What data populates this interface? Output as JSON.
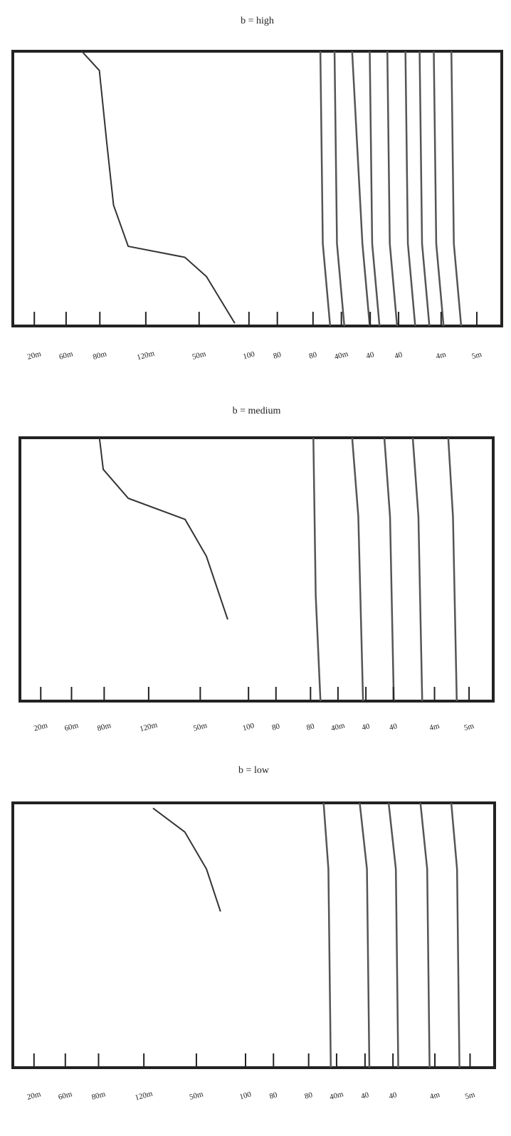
{
  "chart_data": [
    {
      "type": "line",
      "title": "b = high",
      "xlim": [
        0,
        100
      ],
      "ylim": [
        0,
        100
      ],
      "xticks": [
        {
          "value": 4.4,
          "label": "20m"
        },
        {
          "value": 10.9,
          "label": "60m"
        },
        {
          "value": 17.8,
          "label": "80m"
        },
        {
          "value": 27.2,
          "label": "120m"
        },
        {
          "value": 38.1,
          "label": "50m"
        },
        {
          "value": 48.3,
          "label": "100"
        },
        {
          "value": 54.1,
          "label": "80"
        },
        {
          "value": 61.4,
          "label": "80"
        },
        {
          "value": 67.2,
          "label": "40m"
        },
        {
          "value": 73.1,
          "label": "40"
        },
        {
          "value": 78.9,
          "label": "40"
        },
        {
          "value": 87.6,
          "label": "4m"
        },
        {
          "value": 94.9,
          "label": "5m"
        }
      ],
      "series": [
        {
          "color": "#333333",
          "x": [
            14.1,
            17.7,
            19.2,
            20.6,
            23.6,
            35.2,
            39.6,
            45.4
          ],
          "values": [
            100,
            93,
            67,
            44,
            29,
            25,
            18,
            1
          ]
        },
        {
          "color": "#555555",
          "x": [
            62.9,
            63.4,
            64.9
          ],
          "values": [
            100,
            30,
            0
          ]
        },
        {
          "color": "#555555",
          "x": [
            65.8,
            66.3,
            67.8
          ],
          "values": [
            100,
            30,
            0
          ]
        },
        {
          "color": "#555555",
          "x": [
            69.4,
            71.5,
            73.0
          ],
          "values": [
            100,
            30,
            0
          ]
        },
        {
          "color": "#555555",
          "x": [
            73.0,
            73.5,
            75.0
          ],
          "values": [
            100,
            30,
            0
          ]
        },
        {
          "color": "#555555",
          "x": [
            76.6,
            77.1,
            78.6
          ],
          "values": [
            100,
            30,
            0
          ]
        },
        {
          "color": "#555555",
          "x": [
            80.3,
            80.8,
            82.3
          ],
          "values": [
            100,
            30,
            0
          ]
        },
        {
          "color": "#555555",
          "x": [
            83.2,
            83.7,
            85.2
          ],
          "values": [
            100,
            30,
            0
          ]
        },
        {
          "color": "#555555",
          "x": [
            86.1,
            86.6,
            88.1
          ],
          "values": [
            100,
            30,
            0
          ]
        },
        {
          "color": "#555555",
          "x": [
            89.7,
            90.2,
            91.7
          ],
          "values": [
            100,
            30,
            0
          ]
        }
      ]
    },
    {
      "type": "line",
      "title": "b = medium",
      "xlim": [
        0,
        100
      ],
      "ylim": [
        0,
        100
      ],
      "xticks": [
        {
          "value": 4.4,
          "label": "20m"
        },
        {
          "value": 10.9,
          "label": "60m"
        },
        {
          "value": 17.8,
          "label": "80m"
        },
        {
          "value": 27.2,
          "label": "120m"
        },
        {
          "value": 38.1,
          "label": "50m"
        },
        {
          "value": 48.3,
          "label": "100"
        },
        {
          "value": 54.1,
          "label": "80"
        },
        {
          "value": 61.4,
          "label": "80"
        },
        {
          "value": 67.2,
          "label": "40m"
        },
        {
          "value": 73.1,
          "label": "40"
        },
        {
          "value": 78.9,
          "label": "40"
        },
        {
          "value": 87.6,
          "label": "4m"
        },
        {
          "value": 94.9,
          "label": "5m"
        }
      ],
      "series": [
        {
          "color": "#333333",
          "x": [
            16.8,
            17.6,
            22.9,
            34.9,
            39.4,
            43.9
          ],
          "values": [
            100,
            88,
            77,
            69,
            55,
            31
          ]
        },
        {
          "color": "#555555",
          "x": [
            62.0,
            62.5,
            63.5
          ],
          "values": [
            100,
            40,
            0
          ]
        },
        {
          "color": "#555555",
          "x": [
            70.2,
            71.5,
            72.5
          ],
          "values": [
            100,
            70,
            0
          ]
        },
        {
          "color": "#555555",
          "x": [
            77.0,
            78.2,
            79.0
          ],
          "values": [
            100,
            70,
            0
          ]
        },
        {
          "color": "#555555",
          "x": [
            83.0,
            84.2,
            85.0
          ],
          "values": [
            100,
            70,
            0
          ]
        },
        {
          "color": "#555555",
          "x": [
            90.5,
            91.5,
            92.3
          ],
          "values": [
            100,
            70,
            0
          ]
        }
      ]
    },
    {
      "type": "line",
      "title": "b = low",
      "xlim": [
        0,
        100
      ],
      "ylim": [
        0,
        100
      ],
      "xticks": [
        {
          "value": 4.4,
          "label": "20m"
        },
        {
          "value": 10.9,
          "label": "60m"
        },
        {
          "value": 17.8,
          "label": "80m"
        },
        {
          "value": 27.2,
          "label": "120m"
        },
        {
          "value": 38.1,
          "label": "50m"
        },
        {
          "value": 48.3,
          "label": "100"
        },
        {
          "value": 54.1,
          "label": "80"
        },
        {
          "value": 61.4,
          "label": "80"
        },
        {
          "value": 67.2,
          "label": "40m"
        },
        {
          "value": 73.1,
          "label": "40"
        },
        {
          "value": 78.9,
          "label": "40"
        },
        {
          "value": 87.6,
          "label": "4m"
        },
        {
          "value": 94.9,
          "label": "5m"
        }
      ],
      "series": [
        {
          "color": "#333333",
          "x": [
            29.1,
            35.7,
            40.2,
            43.1
          ],
          "values": [
            98,
            89,
            75,
            59
          ]
        },
        {
          "color": "#555555",
          "x": [
            64.5,
            65.5,
            66.0
          ],
          "values": [
            100,
            75,
            0
          ]
        },
        {
          "color": "#555555",
          "x": [
            72.0,
            73.5,
            74.0
          ],
          "values": [
            100,
            75,
            0
          ]
        },
        {
          "color": "#555555",
          "x": [
            78.0,
            79.5,
            80.0
          ],
          "values": [
            100,
            75,
            0
          ]
        },
        {
          "color": "#555555",
          "x": [
            84.6,
            86.0,
            86.5
          ],
          "values": [
            100,
            75,
            0
          ]
        },
        {
          "color": "#555555",
          "x": [
            91.0,
            92.2,
            92.7
          ],
          "values": [
            100,
            75,
            0
          ]
        }
      ]
    }
  ]
}
